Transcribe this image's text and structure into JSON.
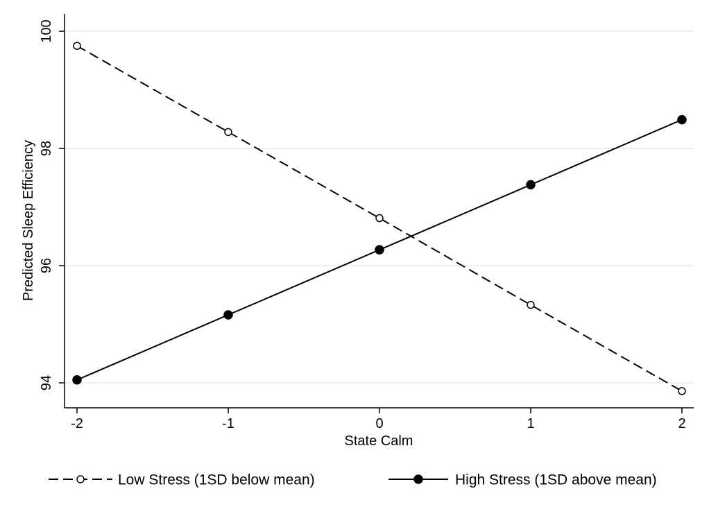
{
  "chart_data": {
    "type": "line",
    "title": "",
    "xlabel": "State Calm",
    "ylabel": "Predicted Sleep Efficiency",
    "x": [
      -2,
      -1,
      0,
      1,
      2
    ],
    "xticks": [
      "-2",
      "-1",
      "0",
      "1",
      "2"
    ],
    "yticks": [
      "94",
      "96",
      "98",
      "100"
    ],
    "xlim": [
      -2,
      2
    ],
    "ylim": [
      94,
      100
    ],
    "grid": "horizontal",
    "legend_position": "bottom",
    "colors": {
      "line": "#000000",
      "grid": "#e3ece9",
      "background": "#ffffff"
    },
    "series": [
      {
        "name": "Low Stress (1SD below mean)",
        "style": "dashed",
        "marker": "hollow-circle",
        "values": [
          99.75,
          98.28,
          96.81,
          95.33,
          93.86
        ]
      },
      {
        "name": "High Stress (1SD above mean)",
        "style": "solid",
        "marker": "filled-circle",
        "values": [
          94.05,
          95.16,
          96.27,
          97.38,
          98.49
        ]
      }
    ]
  }
}
